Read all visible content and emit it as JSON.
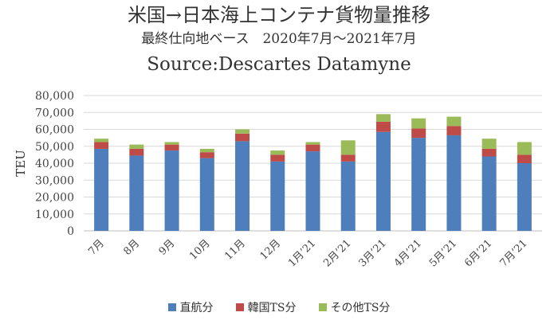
{
  "title": "米国→日本海上コンテナ貨物量推移",
  "subtitle": "最終仕向地ベース　2020年7月～2021年7月",
  "source": "Source:Descartes Datamyne",
  "chart_data": {
    "type": "bar",
    "stacked": true,
    "ylabel": "TEU",
    "ylim": [
      0,
      80000
    ],
    "yticks": [
      0,
      10000,
      20000,
      30000,
      40000,
      50000,
      60000,
      70000,
      80000
    ],
    "ytick_labels": [
      "0",
      "10,000",
      "20,000",
      "30,000",
      "40,000",
      "50,000",
      "60,000",
      "70,000",
      "80,000"
    ],
    "categories": [
      "7月",
      "8月",
      "9月",
      "10月",
      "11月",
      "12月",
      "1月’21",
      "2月’21",
      "3月’21",
      "4月’21",
      "5月’21",
      "6月’21",
      "7月’21"
    ],
    "series": [
      {
        "name": "直航分",
        "color": "#4e7ebb",
        "values": [
          48500,
          44500,
          47500,
          43000,
          53000,
          41000,
          47000,
          41000,
          58500,
          55000,
          56500,
          44000,
          40000
        ]
      },
      {
        "name": "韓国TS分",
        "color": "#be4b48",
        "values": [
          4000,
          4000,
          3500,
          3500,
          4500,
          4000,
          4000,
          4000,
          6000,
          5500,
          5500,
          4500,
          5000
        ]
      },
      {
        "name": "その他TS分",
        "color": "#9bbb59",
        "values": [
          2000,
          2500,
          1500,
          2000,
          2500,
          2500,
          1500,
          8500,
          4500,
          6000,
          5500,
          6000,
          7500
        ]
      }
    ],
    "grid": true,
    "legend": "bottom"
  }
}
